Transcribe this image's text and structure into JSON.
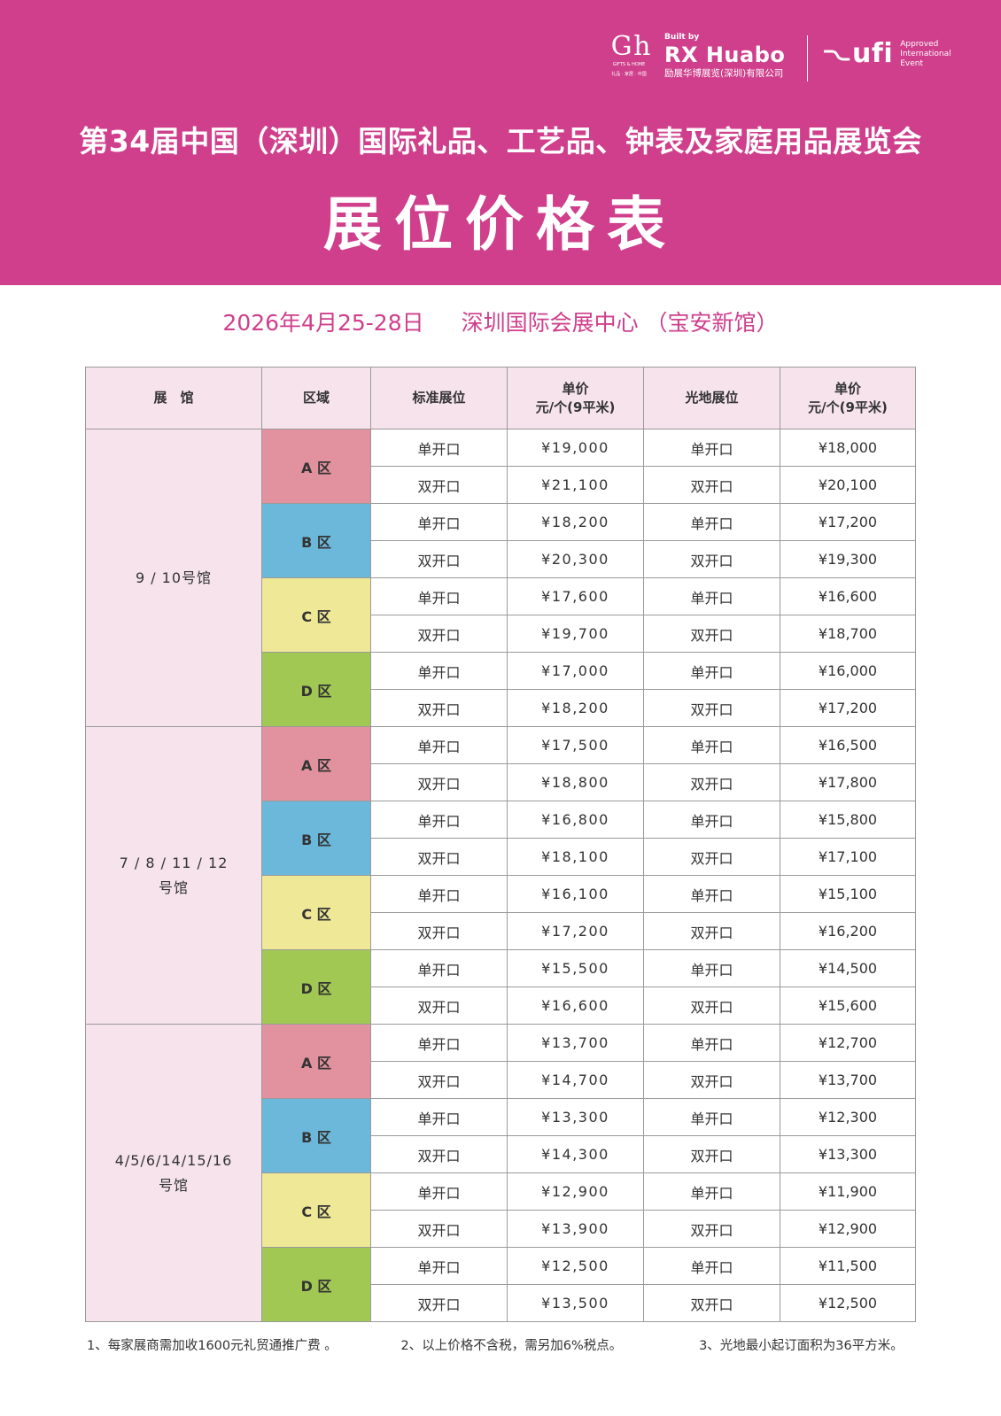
{
  "header": {
    "bg_color": "#cf3f8c",
    "logo_gh": {
      "mark": "G h",
      "line1": "GIFTS & HOME",
      "line2": "礼品 · 家居 · 中国"
    },
    "logo_rx": {
      "built_by": "Built by",
      "brand": "RX Huabo",
      "company": "励展华博展览(深圳)有限公司"
    },
    "logo_ufi": {
      "ufi": "ufi",
      "approved_lines": [
        "Approved",
        "International",
        "Event"
      ]
    },
    "title": "第34届中国（深圳）国际礼品、工艺品、钟表及家庭用品展览会",
    "subtitle": "展位价格表"
  },
  "event": {
    "date": "2026年4月25-28日",
    "venue": "深圳国际会展中心 （宝安新馆）"
  },
  "table": {
    "headers": {
      "hall": "展　馆",
      "zone": "区域",
      "standard": "标准展位",
      "unit_price_line1": "单价",
      "unit_price_line2": "元/个(9平米)",
      "raw": "光地展位",
      "raw_price_line1": "单价",
      "raw_price_line2": "元/个(9平米)"
    },
    "halls": [
      {
        "name_lines": [
          "9 / 10号馆"
        ],
        "zones": [
          {
            "zone": "A 区",
            "color": "#e2929f",
            "rows": [
              {
                "standard": "单开口",
                "standard_price": "¥19,000",
                "raw": "单开口",
                "raw_price": "¥18,000"
              },
              {
                "standard": "双开口",
                "standard_price": "¥21,100",
                "raw": "双开口",
                "raw_price": "¥20,100"
              }
            ]
          },
          {
            "zone": "B 区",
            "color": "#6cb8da",
            "rows": [
              {
                "standard": "单开口",
                "standard_price": "¥18,200",
                "raw": "单开口",
                "raw_price": "¥17,200"
              },
              {
                "standard": "双开口",
                "standard_price": "¥20,300",
                "raw": "双开口",
                "raw_price": "¥19,300"
              }
            ]
          },
          {
            "zone": "C 区",
            "color": "#eee897",
            "rows": [
              {
                "standard": "单开口",
                "standard_price": "¥17,600",
                "raw": "单开口",
                "raw_price": "¥16,600"
              },
              {
                "standard": "双开口",
                "standard_price": "¥19,700",
                "raw": "双开口",
                "raw_price": "¥18,700"
              }
            ]
          },
          {
            "zone": "D 区",
            "color": "#a2c854",
            "rows": [
              {
                "standard": "单开口",
                "standard_price": "¥17,000",
                "raw": "单开口",
                "raw_price": "¥16,000"
              },
              {
                "standard": "双开口",
                "standard_price": "¥18,200",
                "raw": "双开口",
                "raw_price": "¥17,200"
              }
            ]
          }
        ]
      },
      {
        "name_lines": [
          "7 / 8 / 11 / 12",
          "号馆"
        ],
        "zones": [
          {
            "zone": "A 区",
            "color": "#e2929f",
            "rows": [
              {
                "standard": "单开口",
                "standard_price": "¥17,500",
                "raw": "单开口",
                "raw_price": "¥16,500"
              },
              {
                "standard": "双开口",
                "standard_price": "¥18,800",
                "raw": "双开口",
                "raw_price": "¥17,800"
              }
            ]
          },
          {
            "zone": "B 区",
            "color": "#6cb8da",
            "rows": [
              {
                "standard": "单开口",
                "standard_price": "¥16,800",
                "raw": "单开口",
                "raw_price": "¥15,800"
              },
              {
                "standard": "双开口",
                "standard_price": "¥18,100",
                "raw": "双开口",
                "raw_price": "¥17,100"
              }
            ]
          },
          {
            "zone": "C 区",
            "color": "#eee897",
            "rows": [
              {
                "standard": "单开口",
                "standard_price": "¥16,100",
                "raw": "单开口",
                "raw_price": "¥15,100"
              },
              {
                "standard": "双开口",
                "standard_price": "¥17,200",
                "raw": "双开口",
                "raw_price": "¥16,200"
              }
            ]
          },
          {
            "zone": "D 区",
            "color": "#a2c854",
            "rows": [
              {
                "standard": "单开口",
                "standard_price": "¥15,500",
                "raw": "单开口",
                "raw_price": "¥14,500"
              },
              {
                "standard": "双开口",
                "standard_price": "¥16,600",
                "raw": "双开口",
                "raw_price": "¥15,600"
              }
            ]
          }
        ]
      },
      {
        "name_lines": [
          "4/5/6/14/15/16",
          "号馆"
        ],
        "zones": [
          {
            "zone": "A 区",
            "color": "#e2929f",
            "rows": [
              {
                "standard": "单开口",
                "standard_price": "¥13,700",
                "raw": "单开口",
                "raw_price": "¥12,700"
              },
              {
                "standard": "双开口",
                "standard_price": "¥14,700",
                "raw": "双开口",
                "raw_price": "¥13,700"
              }
            ]
          },
          {
            "zone": "B 区",
            "color": "#6cb8da",
            "rows": [
              {
                "standard": "单开口",
                "standard_price": "¥13,300",
                "raw": "单开口",
                "raw_price": "¥12,300"
              },
              {
                "standard": "双开口",
                "standard_price": "¥14,300",
                "raw": "双开口",
                "raw_price": "¥13,300"
              }
            ]
          },
          {
            "zone": "C 区",
            "color": "#eee897",
            "rows": [
              {
                "standard": "单开口",
                "standard_price": "¥12,900",
                "raw": "单开口",
                "raw_price": "¥11,900"
              },
              {
                "standard": "双开口",
                "standard_price": "¥13,900",
                "raw": "双开口",
                "raw_price": "¥12,900"
              }
            ]
          },
          {
            "zone": "D 区",
            "color": "#a2c854",
            "rows": [
              {
                "standard": "单开口",
                "standard_price": "¥12,500",
                "raw": "单开口",
                "raw_price": "¥11,500"
              },
              {
                "standard": "双开口",
                "standard_price": "¥13,500",
                "raw": "双开口",
                "raw_price": "¥12,500"
              }
            ]
          }
        ]
      }
    ]
  },
  "notes": [
    "1、每家展商需加收1600元礼贸通推广费 。",
    "2、以上价格不含税，需另加6%税点。",
    "3、光地最小起订面积为36平方米。"
  ]
}
